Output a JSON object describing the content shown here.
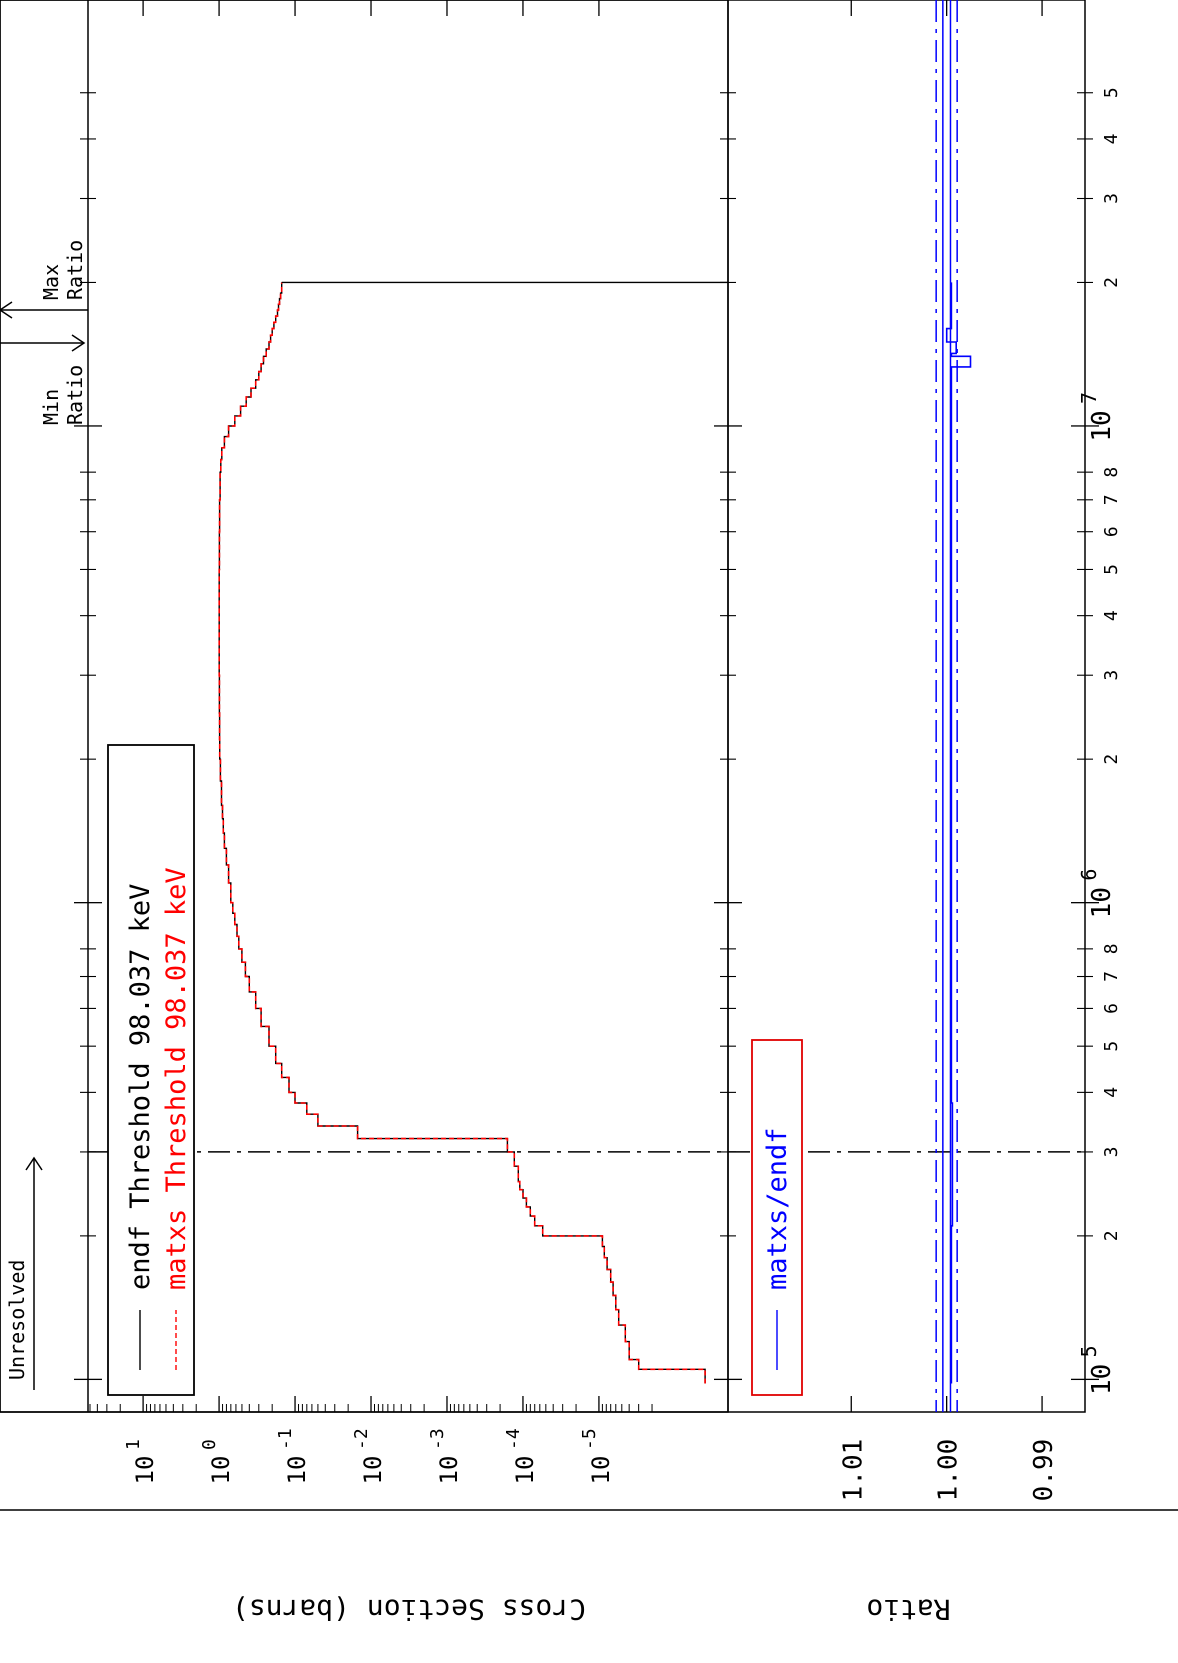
{
  "chart_data": {
    "type": "line",
    "orientation": "rotated-90-clockwise",
    "x_scale": "log",
    "xlim": [
      95000,
      60000000
    ],
    "x_ticks_major": [
      {
        "value": 100000,
        "mantissa": "10",
        "exponent": "5"
      },
      {
        "value": 1000000,
        "mantissa": "10",
        "exponent": "6"
      },
      {
        "value": 10000000,
        "mantissa": "10",
        "exponent": "7"
      }
    ],
    "x_ticks_minor": [
      {
        "value": 200000,
        "label": "2"
      },
      {
        "value": 300000,
        "label": "3"
      },
      {
        "value": 400000,
        "label": "4"
      },
      {
        "value": 500000,
        "label": "5"
      },
      {
        "value": 600000,
        "label": "6"
      },
      {
        "value": 700000,
        "label": "7"
      },
      {
        "value": 800000,
        "label": "8"
      },
      {
        "value": 2000000,
        "label": "2"
      },
      {
        "value": 3000000,
        "label": "3"
      },
      {
        "value": 4000000,
        "label": "4"
      },
      {
        "value": 5000000,
        "label": "5"
      },
      {
        "value": 6000000,
        "label": "6"
      },
      {
        "value": 7000000,
        "label": "7"
      },
      {
        "value": 8000000,
        "label": "8"
      },
      {
        "value": 20000000,
        "label": "2"
      },
      {
        "value": 30000000,
        "label": "3"
      },
      {
        "value": 40000000,
        "label": "4"
      },
      {
        "value": 50000000,
        "label": "5"
      }
    ],
    "top_panel": {
      "ylabel": "Cross Section (barns)",
      "y_scale": "log",
      "ylim": [
        2e-07,
        50
      ],
      "y_ticks": [
        {
          "value": 10,
          "mantissa": "10",
          "exponent": "1"
        },
        {
          "value": 1,
          "mantissa": "10",
          "exponent": "0"
        },
        {
          "value": 0.1,
          "mantissa": "10",
          "exponent": "-1"
        },
        {
          "value": 0.01,
          "mantissa": "10",
          "exponent": "-2"
        },
        {
          "value": 0.001,
          "mantissa": "10",
          "exponent": "-3"
        },
        {
          "value": 0.0001,
          "mantissa": "10",
          "exponent": "-4"
        },
        {
          "value": 1e-05,
          "mantissa": "10",
          "exponent": "-5"
        }
      ],
      "legend_position": "top-left",
      "series": [
        {
          "name": "endf Threshold 98.037 keV",
          "color": "#000000",
          "dash": "solid",
          "x": [
            98037,
            105000,
            110000,
            120000,
            130000,
            140000,
            150000,
            160000,
            170000,
            180000,
            190000,
            200000,
            210000,
            220000,
            230000,
            240000,
            250000,
            260000,
            280000,
            300000,
            320000,
            340000,
            360000,
            380000,
            400000,
            430000,
            460000,
            500000,
            550000,
            600000,
            650000,
            700000,
            750000,
            800000,
            850000,
            900000,
            950000,
            1000000,
            1100000,
            1200000,
            1300000,
            1400000,
            1500000,
            1600000,
            1800000,
            2000000,
            2200000,
            2500000,
            3000000,
            3500000,
            4000000,
            5000000,
            6000000,
            7000000,
            8000000,
            8500000,
            9000000,
            9500000,
            10000000,
            10500000,
            11000000,
            11500000,
            12000000,
            12500000,
            13000000,
            13500000,
            14000000,
            14500000,
            15000000,
            15500000,
            16000000,
            16500000,
            17000000,
            17500000,
            18000000,
            18500000,
            19000000,
            19500000,
            20000000
          ],
          "y": [
            4e-07,
            3e-06,
            4e-06,
            4.5e-06,
            5.5e-06,
            6e-06,
            6.5e-06,
            7e-06,
            7.8e-06,
            8.5e-06,
            9e-06,
            5.5e-05,
            7e-05,
            8e-05,
            9e-05,
            0.0001,
            0.00011,
            0.000115,
            0.00013,
            0.00016,
            0.015,
            0.05,
            0.07,
            0.1,
            0.12,
            0.15,
            0.18,
            0.22,
            0.28,
            0.33,
            0.4,
            0.45,
            0.5,
            0.55,
            0.58,
            0.62,
            0.66,
            0.7,
            0.75,
            0.8,
            0.85,
            0.88,
            0.9,
            0.93,
            0.96,
            0.98,
            0.985,
            0.99,
            0.995,
            0.995,
            0.995,
            0.99,
            0.985,
            0.97,
            0.95,
            0.92,
            0.85,
            0.75,
            0.62,
            0.52,
            0.44,
            0.38,
            0.33,
            0.3,
            0.28,
            0.26,
            0.24,
            0.22,
            0.21,
            0.2,
            0.19,
            0.18,
            0.17,
            0.165,
            0.16,
            0.155,
            0.15,
            0.15,
            0.15
          ]
        },
        {
          "name": "matxs Threshold 98.037 keV",
          "color": "#ff0000",
          "dash": "dashed",
          "x": [
            98037,
            105000,
            110000,
            120000,
            130000,
            140000,
            150000,
            160000,
            170000,
            180000,
            190000,
            200000,
            210000,
            220000,
            230000,
            240000,
            250000,
            260000,
            280000,
            300000,
            320000,
            340000,
            360000,
            380000,
            400000,
            430000,
            460000,
            500000,
            550000,
            600000,
            650000,
            700000,
            750000,
            800000,
            850000,
            900000,
            950000,
            1000000,
            1100000,
            1200000,
            1300000,
            1400000,
            1500000,
            1600000,
            1800000,
            2000000,
            2200000,
            2500000,
            3000000,
            3500000,
            4000000,
            5000000,
            6000000,
            7000000,
            8000000,
            8500000,
            9000000,
            9500000,
            10000000,
            10500000,
            11000000,
            11500000,
            12000000,
            12500000,
            13000000,
            13500000,
            14000000,
            14500000,
            15000000,
            15500000,
            16000000,
            16500000,
            17000000,
            17500000,
            18000000,
            18500000,
            19000000,
            19500000,
            20000000
          ],
          "y": [
            4e-07,
            3e-06,
            4e-06,
            4.5e-06,
            5.5e-06,
            6e-06,
            6.5e-06,
            7e-06,
            7.8e-06,
            8.5e-06,
            9e-06,
            5.5e-05,
            7e-05,
            8e-05,
            9e-05,
            0.0001,
            0.00011,
            0.000115,
            0.00013,
            0.00016,
            0.015,
            0.05,
            0.07,
            0.1,
            0.12,
            0.15,
            0.18,
            0.22,
            0.28,
            0.33,
            0.4,
            0.45,
            0.5,
            0.55,
            0.58,
            0.62,
            0.66,
            0.7,
            0.75,
            0.8,
            0.85,
            0.88,
            0.9,
            0.93,
            0.96,
            0.98,
            0.985,
            0.99,
            0.995,
            0.995,
            0.995,
            0.99,
            0.985,
            0.97,
            0.95,
            0.92,
            0.85,
            0.75,
            0.62,
            0.52,
            0.44,
            0.38,
            0.33,
            0.3,
            0.28,
            0.26,
            0.24,
            0.22,
            0.21,
            0.2,
            0.19,
            0.18,
            0.17,
            0.165,
            0.16,
            0.155,
            0.15,
            0.15,
            0.15
          ]
        }
      ],
      "endf_drop_at": 20000000
    },
    "bottom_panel": {
      "ylabel": "Ratio",
      "ylim": [
        0.9855,
        1.0225
      ],
      "y_ticks": [
        {
          "value": 1.01,
          "label": "1.01"
        },
        {
          "value": 1.0,
          "label": "1.00"
        },
        {
          "value": 0.99,
          "label": "0.99"
        }
      ],
      "legend_position": "top-left",
      "series": [
        {
          "name": "matxs/endf",
          "color": "#0000ff",
          "dash": "solid",
          "x": [
            98037,
            100000,
            200000,
            210000,
            380000,
            400000,
            9000000,
            10000000,
            13000000,
            13300000,
            14000000,
            14200000,
            15000000,
            16000000,
            20000000
          ],
          "y": [
            0.9995,
            0.9995,
            0.9995,
            0.9994,
            0.9995,
            0.9995,
            0.9995,
            0.9995,
            0.9995,
            0.9975,
            0.9995,
            0.999,
            1.0,
            0.9995,
            0.9995
          ]
        }
      ],
      "band_lines": [
        1.0004,
        0.9996
      ],
      "band_dashdot_lines": [
        1.0011,
        0.9989
      ]
    },
    "vertical_markers": [
      {
        "x": 300000,
        "style": "dashdot",
        "color": "#000000"
      }
    ],
    "annotations": {
      "unresolved": "Unresolved",
      "min_ratio": [
        "Min",
        "Ratio"
      ],
      "max_ratio": [
        "Max",
        "Ratio"
      ]
    }
  }
}
